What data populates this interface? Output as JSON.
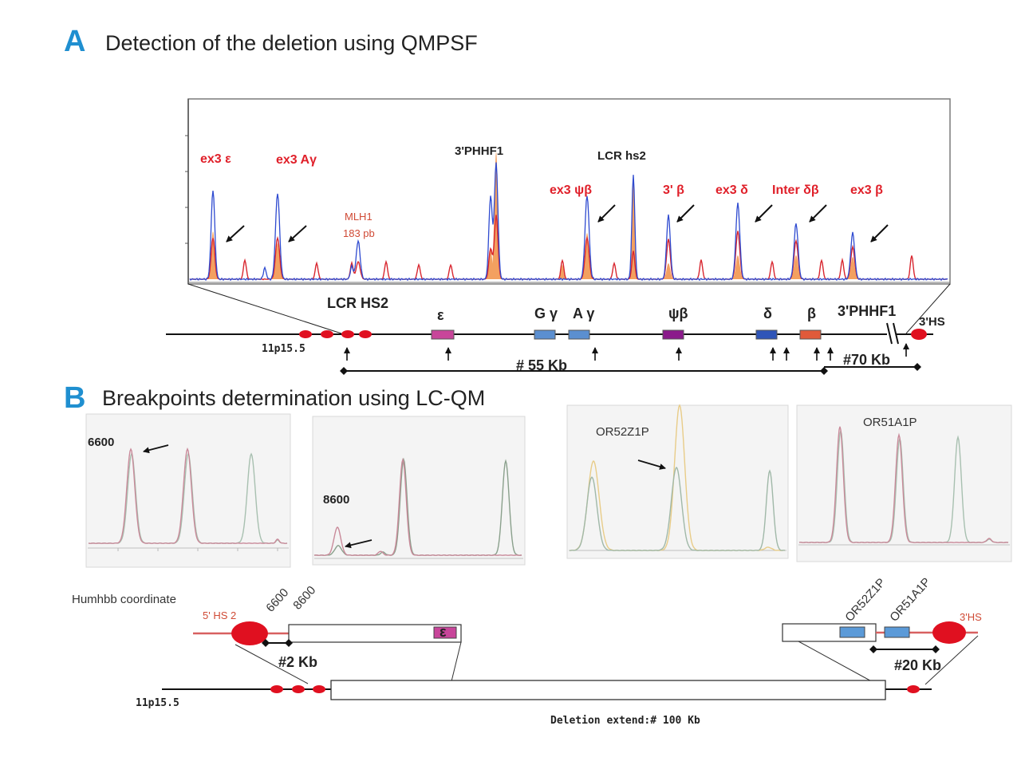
{
  "panel_a": {
    "letter": "A",
    "title": "Detection of the deletion using QMPSF",
    "peak_labels": {
      "ex3_eps": "ex3 ε",
      "ex3_agamma": "ex3 Aγ",
      "mlh1": "MLH1",
      "mlh1_size": "183 pb",
      "phhf1": "3'PHHF1",
      "lcr_hs2": "LCR hs2",
      "ex3_psib": "ex3 ψβ",
      "b3": "3' β",
      "ex3_delta": "ex3 δ",
      "inter_db": "Inter δβ",
      "ex3_beta": "ex3 β"
    },
    "map": {
      "lcr": "LCR HS2",
      "eps": "ε",
      "ggamma": "G γ",
      "agamma": "A γ",
      "psib": "ψβ",
      "delta": "δ",
      "beta": "β",
      "phhf1": "3'PHHF1",
      "hs3": "3'HS",
      "locus": "11p15.5",
      "dist55": "# 55 Kb",
      "dist70": "#70 Kb"
    }
  },
  "panel_b": {
    "letter": "B",
    "title": "Breakpoints determination using LC-QM",
    "plots": {
      "p1": "6600",
      "p2": "8600",
      "p3": "OR52Z1P",
      "p4": "OR51A1P"
    },
    "map": {
      "coord": "Humhbb  coordinate",
      "hs2": "5' HS 2",
      "c6600": "6600",
      "c8600": "8600",
      "eps_box": "ε",
      "dist2": "#2 Kb",
      "or52": "OR52Z1P",
      "or51": "OR51A1P",
      "hs3": "3'HS",
      "dist20": "#20 Kb",
      "locus": "11p15.5",
      "deletion": "Deletion extend:# 100 Kb"
    }
  }
}
